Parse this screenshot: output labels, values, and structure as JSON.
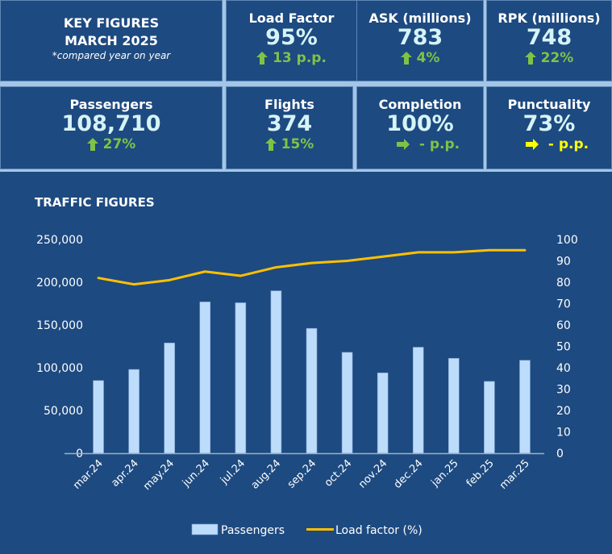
{
  "key_figures": {
    "title_line1": "KEY FIGURES",
    "title_line2": "MARCH 2025",
    "subtitle": "*compared year on year"
  },
  "kpis": [
    {
      "label": "Load Factor",
      "value": "95%",
      "change": "13 p.p.",
      "trend": "up",
      "trend_color": "#7ec347"
    },
    {
      "label": "ASK (millions)",
      "value": "783",
      "change": "4%",
      "trend": "up",
      "trend_color": "#7ec347"
    },
    {
      "label": "RPK (millions)",
      "value": "748",
      "change": "22%",
      "trend": "up",
      "trend_color": "#7ec347"
    },
    {
      "label": "Passengers",
      "value": "108,710",
      "change": "27%",
      "trend": "up",
      "trend_color": "#7ec347"
    },
    {
      "label": "Flights",
      "value": "374",
      "change": "15%",
      "trend": "up",
      "trend_color": "#7ec347"
    },
    {
      "label": "Completion",
      "value": "100%",
      "change": "- p.p.",
      "trend": "flat",
      "trend_color": "#7ec347"
    },
    {
      "label": "Punctuality",
      "value": "73%",
      "change": "- p.p.",
      "trend": "flat",
      "trend_color": "#ffff00"
    }
  ],
  "chart_data": {
    "type": "bar",
    "title": "TRAFFIC FIGURES",
    "categories": [
      "mar.24",
      "apr.24",
      "may.24",
      "jun.24",
      "jul.24",
      "aug.24",
      "sep.24",
      "oct.24",
      "nov.24",
      "dec.24",
      "jan.25",
      "feb.25",
      "mar.25"
    ],
    "series": [
      {
        "name": "Passengers",
        "type": "bar",
        "axis": "left",
        "color": "#bddcfb",
        "values": [
          85000,
          98000,
          129000,
          177000,
          176000,
          190000,
          146000,
          118000,
          94000,
          124000,
          111000,
          84000,
          108710
        ]
      },
      {
        "name": "Load factor (%)",
        "type": "line",
        "axis": "right",
        "color": "#ffc000",
        "values": [
          82,
          79,
          81,
          85,
          83,
          87,
          89,
          90,
          92,
          94,
          94,
          95,
          95
        ]
      }
    ],
    "left_axis": {
      "ylim": [
        0,
        250000
      ],
      "ticks": [
        "0",
        "50,000",
        "100,000",
        "150,000",
        "200,000",
        "250,000"
      ]
    },
    "right_axis": {
      "ylim": [
        0,
        100
      ],
      "ticks": [
        "0",
        "10",
        "20",
        "30",
        "40",
        "50",
        "60",
        "70",
        "80",
        "90",
        "100"
      ]
    },
    "grid": false,
    "legend": "bottom"
  },
  "colors": {
    "background": "#1d4a80",
    "separator": "#a3c6e6",
    "up": "#7ec347",
    "neutral": "#ffff00",
    "value": "#d6f3f6"
  }
}
